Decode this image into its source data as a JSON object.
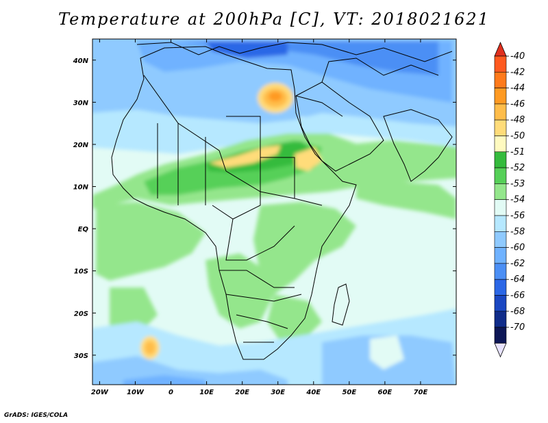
{
  "title": "Temperature at 200hPa [C], VT: 2018021621",
  "credit": "GrADS: IGES/COLA",
  "lon_ticks": [
    "20W",
    "10W",
    "0",
    "10E",
    "20E",
    "30E",
    "40E",
    "50E",
    "60E",
    "70E"
  ],
  "lat_ticks": [
    "40N",
    "30N",
    "20N",
    "10N",
    "EQ",
    "10S",
    "20S",
    "30S"
  ],
  "colorbar": {
    "labels": [
      "-40",
      "-42",
      "-44",
      "-46",
      "-48",
      "-50",
      "-51",
      "-52",
      "-53",
      "-54",
      "-56",
      "-58",
      "-60",
      "-62",
      "-64",
      "-66",
      "-68",
      "-70"
    ],
    "colors": [
      "#e0301e",
      "#ff5a1f",
      "#ff7a1a",
      "#ff9a22",
      "#ffbd4a",
      "#ffdc7a",
      "#fffac0",
      "#35bb3d",
      "#56d058",
      "#94e68c",
      "#e2fbf5",
      "#b6e8ff",
      "#8fcaff",
      "#6fb2ff",
      "#4b8ff5",
      "#2b67e6",
      "#1a47c2",
      "#102c8a",
      "#0c1656",
      "#e8e3ff"
    ]
  },
  "map": {
    "background_color": "#e2fbf5",
    "lon_range": [
      -22,
      80
    ],
    "lat_range": [
      -37,
      45
    ]
  }
}
